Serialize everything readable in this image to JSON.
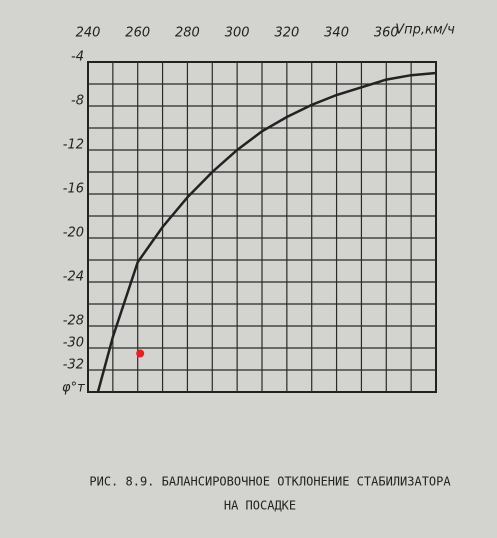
{
  "chart_data": {
    "type": "line",
    "title": [
      "РИС. 8.9. БАЛАНСИРОВОЧНОЕ ОТКЛОНЕНИЕ СТАБИЛИЗАТОРА",
      "НА ПОСАДКЕ"
    ],
    "x_label": "Vпр,км/ч",
    "y_label": "φ°т",
    "series": [
      {
        "color": "#222222",
        "x": [
          244,
          250,
          260,
          270,
          280,
          290,
          300,
          310,
          320,
          330,
          340,
          350,
          360,
          370,
          380
        ],
        "values": [
          -34,
          -29,
          -22.2,
          -19,
          -16.3,
          -14,
          -12,
          -10.3,
          -9,
          -7.9,
          -7,
          -6.3,
          -5.6,
          -5.2,
          -5
        ]
      }
    ],
    "marker": {
      "x": 261,
      "y": -30.5,
      "color": "#e8201a"
    },
    "xlim": [
      240,
      380
    ],
    "ylim": [
      -34,
      -4
    ],
    "xticks": [
      240,
      260,
      280,
      300,
      320,
      340,
      360
    ],
    "yticks": [
      -4,
      -8,
      -12,
      -16,
      -20,
      -24,
      -28,
      -30,
      -32
    ],
    "xgrid": [
      250,
      260,
      270,
      280,
      290,
      300,
      310,
      320,
      330,
      340,
      350,
      360,
      370
    ],
    "ygrid": [
      -6,
      -8,
      -10,
      -12,
      -14,
      -16,
      -18,
      -20,
      -22,
      -24,
      -26,
      -28,
      -30,
      -32
    ],
    "grid": true
  }
}
